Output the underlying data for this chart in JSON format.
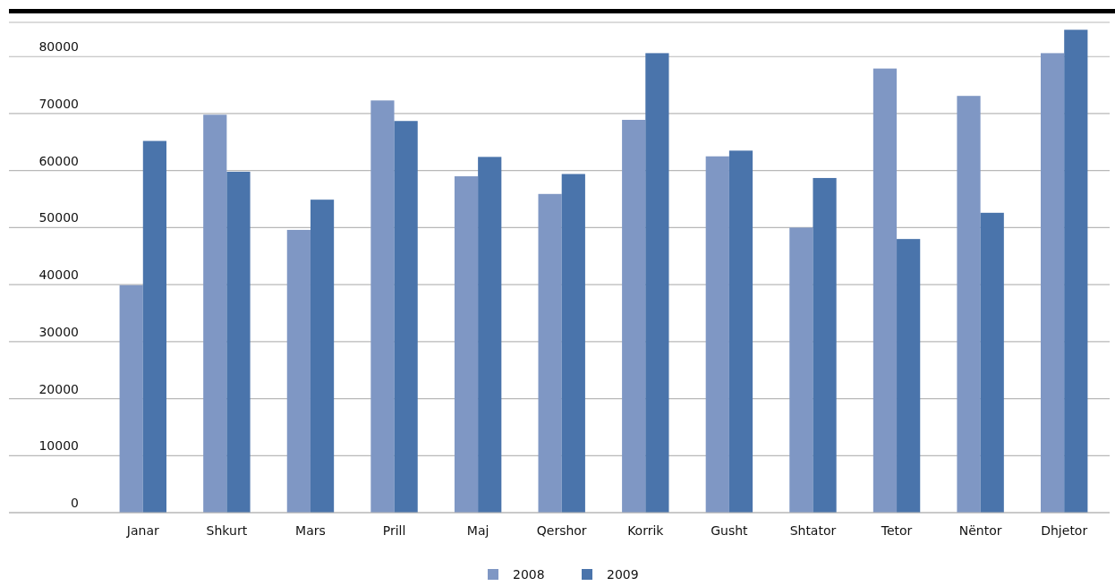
{
  "chart_data": {
    "type": "bar",
    "categories": [
      "Janar",
      "Shkurt",
      "Mars",
      "Prill",
      "Maj",
      "Qershor",
      "Korrik",
      "Gusht",
      "Shtator",
      "Tetor",
      "Nëntor",
      "Dhjetor"
    ],
    "series": [
      {
        "name": "2008",
        "color": "#7f97c4",
        "values": [
          39900,
          69800,
          49600,
          72300,
          59000,
          55900,
          68900,
          62500,
          50000,
          77900,
          73100,
          80600
        ]
      },
      {
        "name": "2009",
        "color": "#4a74ab",
        "values": [
          65200,
          59800,
          54900,
          68700,
          62400,
          59400,
          80600,
          63500,
          58700,
          48000,
          52600,
          84700
        ]
      }
    ],
    "ylim": [
      0,
      86000
    ],
    "yticks": [
      0,
      10000,
      20000,
      30000,
      40000,
      50000,
      60000,
      70000,
      80000
    ],
    "grid": "y",
    "legend": "bottom"
  }
}
